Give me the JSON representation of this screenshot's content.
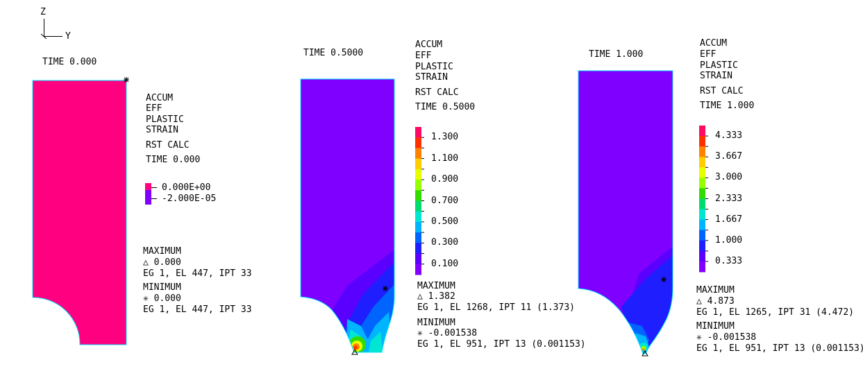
{
  "axes": {
    "z_label": "Z",
    "y_label": "Y"
  },
  "colors": {
    "background": "#ffffff",
    "outline": "#00e5ff",
    "magenta": "#ff0080",
    "violet": "#8000ff",
    "blue": "#3c1eff"
  },
  "panels": [
    {
      "time_label": "TIME 0.000",
      "title_lines": [
        "ACCUM",
        "EFF",
        "PLASTIC",
        "STRAIN"
      ],
      "calc": "RST CALC",
      "time_sub": "TIME 0.000",
      "legend": {
        "colors": [
          "#ff0080",
          "#8000ff"
        ],
        "labels": [
          "0.000E+00",
          "-2.000E-05"
        ]
      },
      "max_label": "MAXIMUM",
      "max_value": "0.000",
      "max_loc": "EG 1, EL 447, IPT 33",
      "min_label": "MINIMUM",
      "min_value": "0.000",
      "min_loc": "EG 1, EL 447, IPT 33"
    },
    {
      "time_label": "TIME 0.5000",
      "title_lines": [
        "ACCUM",
        "EFF",
        "PLASTIC",
        "STRAIN"
      ],
      "calc": "RST CALC",
      "time_sub": "TIME 0.5000",
      "legend": {
        "colors": [
          "#ff0a64",
          "#ff3000",
          "#ff8200",
          "#ffcd00",
          "#e6ff00",
          "#96ff00",
          "#32dc00",
          "#00dc6e",
          "#00e6d2",
          "#00b4ff",
          "#0064ff",
          "#1e1eff",
          "#5a00ff",
          "#8200ff"
        ],
        "labels": [
          "1.300",
          "1.100",
          "0.900",
          "0.700",
          "0.500",
          "0.300",
          "0.100"
        ]
      },
      "max_label": "MAXIMUM",
      "max_value": "1.382",
      "max_loc": "EG 1, EL 1268, IPT 11 (1.373)",
      "min_label": "MINIMUM",
      "min_value": "-0.001538",
      "min_loc": "EG 1, EL 951, IPT 13 (0.001153)"
    },
    {
      "time_label": "TIME 1.000",
      "title_lines": [
        "ACCUM",
        "EFF",
        "PLASTIC",
        "STRAIN"
      ],
      "calc": "RST CALC",
      "time_sub": "TIME 1.000",
      "legend": {
        "colors": [
          "#ff0a64",
          "#ff3000",
          "#ff8200",
          "#ffcd00",
          "#e6ff00",
          "#96ff00",
          "#32dc00",
          "#00dc6e",
          "#00e6d2",
          "#00b4ff",
          "#0064ff",
          "#1e1eff",
          "#5a00ff",
          "#8200ff"
        ],
        "labels": [
          "4.333",
          "3.667",
          "3.000",
          "2.333",
          "1.667",
          "1.000",
          "0.333"
        ]
      },
      "max_label": "MAXIMUM",
      "max_value": "4.873",
      "max_loc": "EG 1, EL 1265, IPT 31 (4.472)",
      "min_label": "MINIMUM",
      "min_value": "-0.001538",
      "min_loc": "EG 1, EL 951, IPT 13 (0.001153)"
    }
  ]
}
